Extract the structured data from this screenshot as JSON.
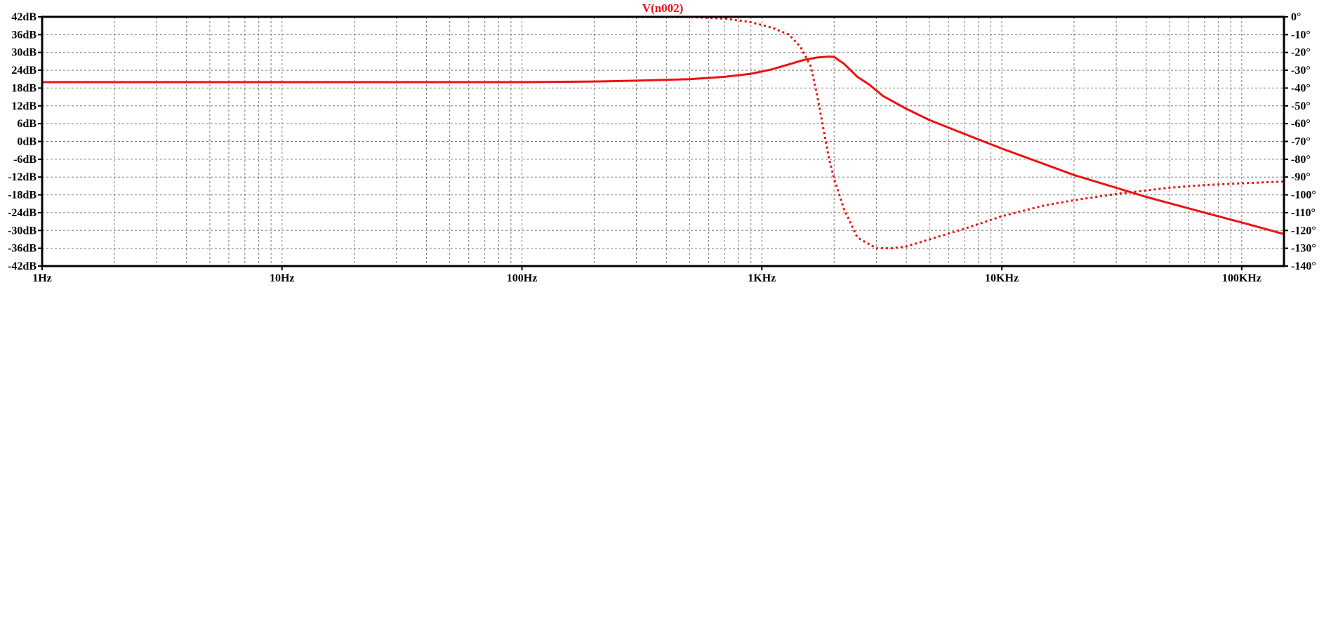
{
  "chart_data": {
    "type": "line",
    "title": "V(n002)",
    "xscale": "log",
    "xlim": [
      1,
      150000
    ],
    "x_ticks": [
      {
        "value": 1,
        "label": "1Hz"
      },
      {
        "value": 10,
        "label": "10Hz"
      },
      {
        "value": 100,
        "label": "100Hz"
      },
      {
        "value": 1000,
        "label": "1KHz"
      },
      {
        "value": 10000,
        "label": "10KHz"
      },
      {
        "value": 100000,
        "label": "100KHz"
      }
    ],
    "y_left": {
      "range": [
        -42,
        42
      ],
      "ticks": [
        {
          "value": 42,
          "label": "42dB"
        },
        {
          "value": 36,
          "label": "36dB"
        },
        {
          "value": 30,
          "label": "30dB"
        },
        {
          "value": 24,
          "label": "24dB"
        },
        {
          "value": 18,
          "label": "18dB"
        },
        {
          "value": 12,
          "label": "12dB"
        },
        {
          "value": 6,
          "label": "6dB"
        },
        {
          "value": 0,
          "label": "0dB"
        },
        {
          "value": -6,
          "label": "-6dB"
        },
        {
          "value": -12,
          "label": "-12dB"
        },
        {
          "value": -18,
          "label": "-18dB"
        },
        {
          "value": -24,
          "label": "-24dB"
        },
        {
          "value": -30,
          "label": "-30dB"
        },
        {
          "value": -36,
          "label": "-36dB"
        },
        {
          "value": -42,
          "label": "-42dB"
        }
      ]
    },
    "y_right": {
      "range": [
        -140,
        0
      ],
      "ticks": [
        {
          "value": 0,
          "label": "0°"
        },
        {
          "value": -10,
          "label": "-10°"
        },
        {
          "value": -20,
          "label": "-20°"
        },
        {
          "value": -30,
          "label": "-30°"
        },
        {
          "value": -40,
          "label": "-40°"
        },
        {
          "value": -50,
          "label": "-50°"
        },
        {
          "value": -60,
          "label": "-60°"
        },
        {
          "value": -70,
          "label": "-70°"
        },
        {
          "value": -80,
          "label": "-80°"
        },
        {
          "value": -90,
          "label": "-90°"
        },
        {
          "value": -100,
          "label": "-100°"
        },
        {
          "value": -110,
          "label": "-110°"
        },
        {
          "value": -120,
          "label": "-120°"
        },
        {
          "value": -130,
          "label": "-130°"
        },
        {
          "value": -140,
          "label": "-140°"
        }
      ]
    },
    "grid": true,
    "color": "#ee1111",
    "series": [
      {
        "axis": "left",
        "style": "solid",
        "x": [
          1,
          10,
          100,
          200,
          300,
          500,
          700,
          900,
          1100,
          1300,
          1500,
          1700,
          1900,
          2000,
          2200,
          2500,
          2800,
          3200,
          4000,
          5000,
          7000,
          10000,
          20000,
          40000,
          70000,
          100000,
          150000
        ],
        "y": [
          20,
          20,
          20,
          20.2,
          20.5,
          21,
          21.8,
          22.8,
          24.3,
          26,
          27.5,
          28.3,
          28.6,
          28.5,
          26.2,
          21.8,
          19.2,
          15.3,
          11,
          7.2,
          2.5,
          -2.4,
          -11.3,
          -18.7,
          -24,
          -27.3,
          -31.2
        ]
      },
      {
        "axis": "right",
        "style": "dotted",
        "x": [
          1,
          100,
          500,
          700,
          900,
          1100,
          1300,
          1450,
          1600,
          1700,
          1800,
          1900,
          2000,
          2200,
          2500,
          3000,
          3500,
          4000,
          5000,
          7000,
          10000,
          15000,
          20000,
          30000,
          50000,
          70000,
          100000,
          150000
        ],
        "y": [
          0,
          0,
          -0.1,
          -1,
          -3,
          -6,
          -10,
          -17,
          -28,
          -44,
          -62,
          -79,
          -91,
          -108,
          -124,
          -130,
          -130,
          -129,
          -125,
          -119,
          -112,
          -106,
          -103,
          -99.5,
          -96,
          -94.5,
          -93.5,
          -92.5
        ]
      }
    ]
  }
}
